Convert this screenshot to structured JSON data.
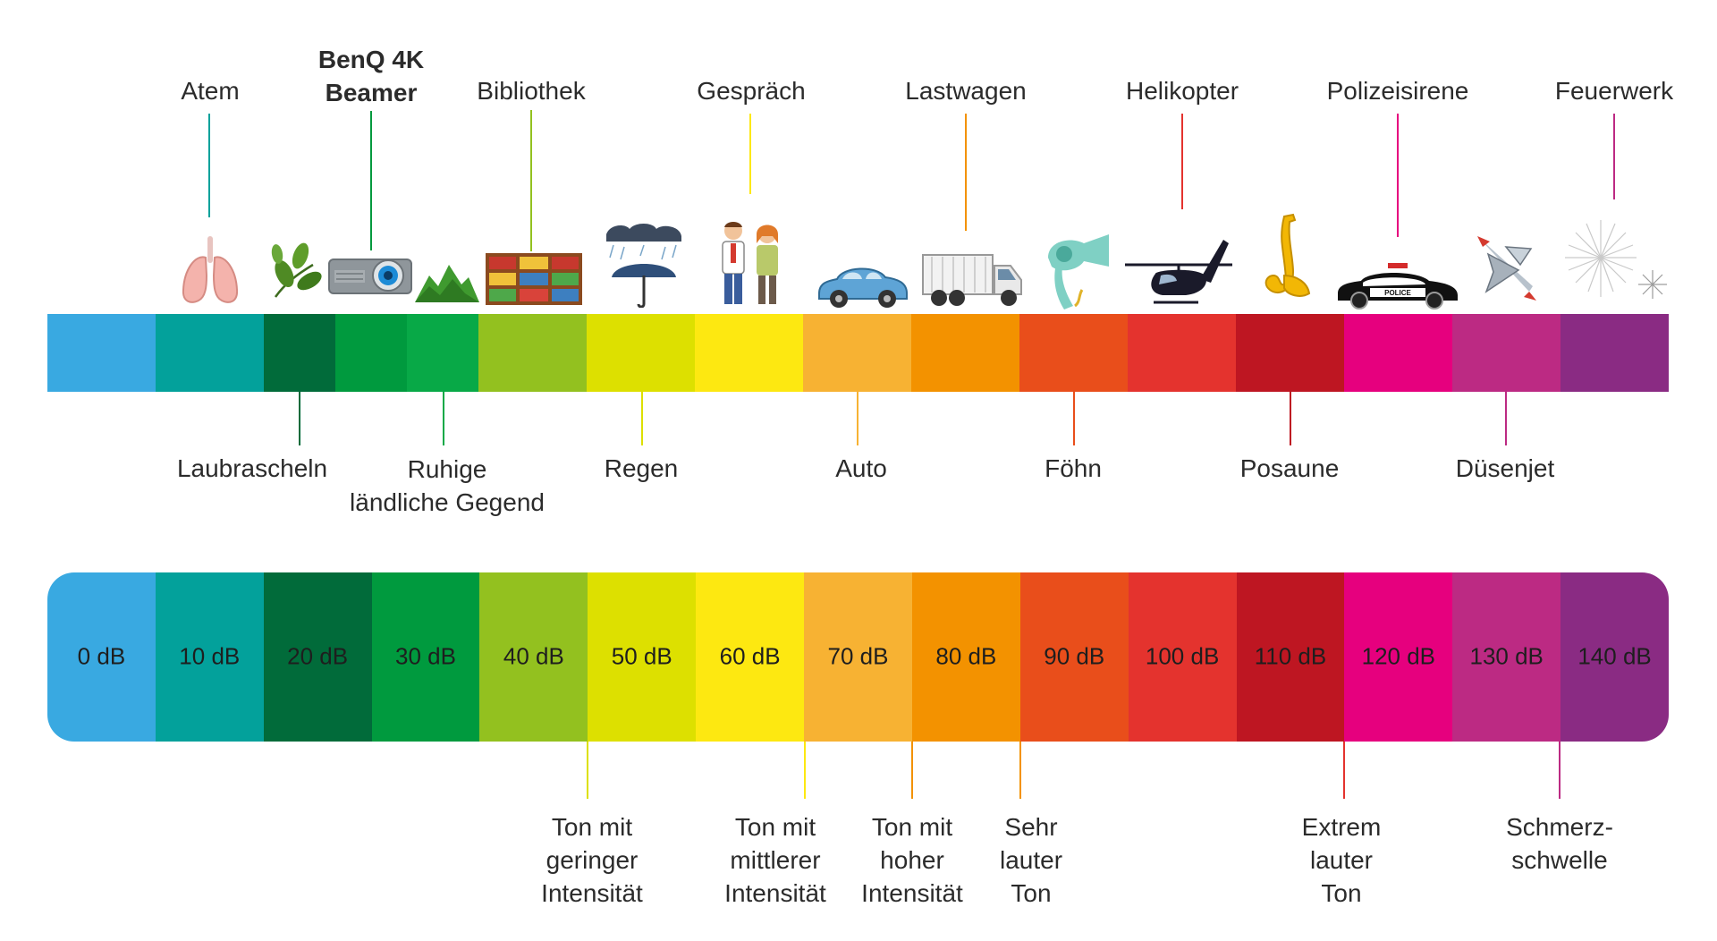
{
  "colors": [
    "#39a9e1",
    "#03a19b",
    "#016b3a",
    "#009a3e",
    "#08a947",
    "#93c11f",
    "#dde000",
    "#fde811",
    "#f7b233",
    "#f39200",
    "#e94e1b",
    "#e4332e",
    "#be1622",
    "#e6007e",
    "#bc2a83",
    "#8a2b83"
  ],
  "top_sources": [
    {
      "id": "atem",
      "label": "Atem",
      "color": "#03a19b",
      "icon": "lungs-icon",
      "bold": false
    },
    {
      "id": "beamer",
      "label": "BenQ 4K\nBeamer",
      "color": "#009a3e",
      "icon": "projector-icon",
      "bold": true
    },
    {
      "id": "bibliothek",
      "label": "Bibliothek",
      "color": "#93c11f",
      "icon": "bookshelf-icon",
      "bold": false
    },
    {
      "id": "gespraech",
      "label": "Gespräch",
      "color": "#fde811",
      "icon": "conversation-icon",
      "bold": false
    },
    {
      "id": "lastwagen",
      "label": "Lastwagen",
      "color": "#f39200",
      "icon": "truck-icon",
      "bold": false
    },
    {
      "id": "helikopter",
      "label": "Helikopter",
      "color": "#e4332e",
      "icon": "helicopter-icon",
      "bold": false
    },
    {
      "id": "polizeisirene",
      "label": "Polizeisirene",
      "color": "#e6007e",
      "icon": "police-car-icon",
      "bold": false
    },
    {
      "id": "feuerwerk",
      "label": "Feuerwerk",
      "color": "#8a2b83",
      "icon": "fireworks-icon",
      "bold": false
    }
  ],
  "mid_sources": [
    {
      "id": "laubrascheln",
      "label": "Laubrascheln",
      "color": "#016b3a",
      "icon": "leaves-icon"
    },
    {
      "id": "ruhige",
      "label": "Ruhige\nländliche Gegend",
      "color": "#08a947",
      "icon": "hills-icon"
    },
    {
      "id": "regen",
      "label": "Regen",
      "color": "#dde000",
      "icon": "umbrella-rain-icon"
    },
    {
      "id": "auto",
      "label": "Auto",
      "color": "#f7b233",
      "icon": "car-icon"
    },
    {
      "id": "foehn",
      "label": "Föhn",
      "color": "#e94e1b",
      "icon": "hairdryer-icon"
    },
    {
      "id": "posaune",
      "label": "Posaune",
      "color": "#be1622",
      "icon": "saxophone-icon"
    },
    {
      "id": "duesenjet",
      "label": "Düsenjet",
      "color": "#bc2a83",
      "icon": "jet-icon"
    }
  ],
  "db_scale": {
    "labels": [
      "0 dB",
      "10 dB",
      "20 dB",
      "30 dB",
      "40 dB",
      "50 dB",
      "60 dB",
      "70 dB",
      "80 dB",
      "90 dB",
      "100 dB",
      "110 dB",
      "120 dB",
      "130 dB",
      "140 dB"
    ],
    "colors": [
      "#39a9e1",
      "#03a19b",
      "#016b3a",
      "#009a3e",
      "#93c11f",
      "#dde000",
      "#fde811",
      "#f7b233",
      "#f39200",
      "#e94e1b",
      "#e4332e",
      "#be1622",
      "#e6007e",
      "#bc2a83",
      "#8a2b83"
    ]
  },
  "intensity_labels": [
    {
      "id": "gering",
      "label": "Ton mit\ngeringer\nIntensität",
      "color": "#dde000"
    },
    {
      "id": "mittel",
      "label": "Ton mit\nmittlerer\nIntensität",
      "color": "#fde811"
    },
    {
      "id": "hoch",
      "label": "Ton mit\nhoher\nIntensität",
      "color": "#f39200"
    },
    {
      "id": "sehrlaut",
      "label": "Sehr\nlauter\nTon",
      "color": "#f39200"
    },
    {
      "id": "extrem",
      "label": "Extrem\nlauter\nTon",
      "color": "#e4332e"
    },
    {
      "id": "schmerz",
      "label": "Schmerz-\nschwelle",
      "color": "#bc2a83"
    }
  ]
}
